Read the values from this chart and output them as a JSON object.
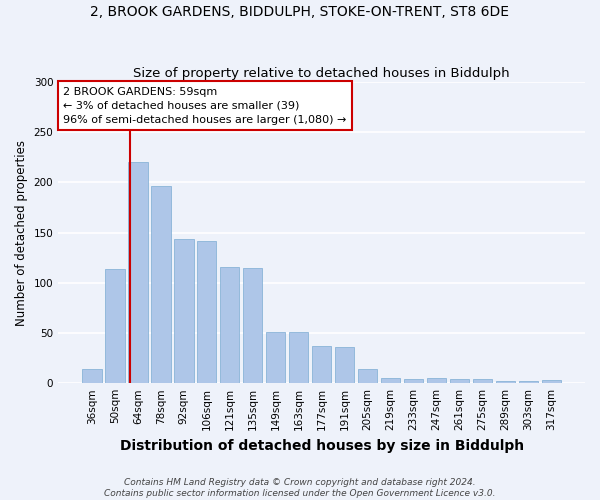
{
  "title_line1": "2, BROOK GARDENS, BIDDULPH, STOKE-ON-TRENT, ST8 6DE",
  "title_line2": "Size of property relative to detached houses in Biddulph",
  "xlabel": "Distribution of detached houses by size in Biddulph",
  "ylabel": "Number of detached properties",
  "categories": [
    "36sqm",
    "50sqm",
    "64sqm",
    "78sqm",
    "92sqm",
    "106sqm",
    "121sqm",
    "135sqm",
    "149sqm",
    "163sqm",
    "177sqm",
    "191sqm",
    "205sqm",
    "219sqm",
    "233sqm",
    "247sqm",
    "261sqm",
    "275sqm",
    "289sqm",
    "303sqm",
    "317sqm"
  ],
  "values": [
    14,
    114,
    220,
    196,
    144,
    142,
    116,
    115,
    51,
    51,
    37,
    36,
    14,
    5,
    4,
    5,
    4,
    4,
    2,
    2,
    3
  ],
  "bar_color": "#aec6e8",
  "bar_edge_color": "#8ab4d8",
  "vline_color": "#cc0000",
  "annotation_text": "2 BROOK GARDENS: 59sqm\n← 3% of detached houses are smaller (39)\n96% of semi-detached houses are larger (1,080) →",
  "annotation_box_color": "#ffffff",
  "annotation_box_edge": "#cc0000",
  "ylim": [
    0,
    300
  ],
  "yticks": [
    0,
    50,
    100,
    150,
    200,
    250,
    300
  ],
  "footer": "Contains HM Land Registry data © Crown copyright and database right 2024.\nContains public sector information licensed under the Open Government Licence v3.0.",
  "bg_color": "#eef2fa",
  "grid_color": "#ffffff",
  "title_fontsize": 10,
  "subtitle_fontsize": 9.5,
  "xlabel_fontsize": 10,
  "ylabel_fontsize": 8.5,
  "tick_fontsize": 7.5,
  "footer_fontsize": 6.5
}
